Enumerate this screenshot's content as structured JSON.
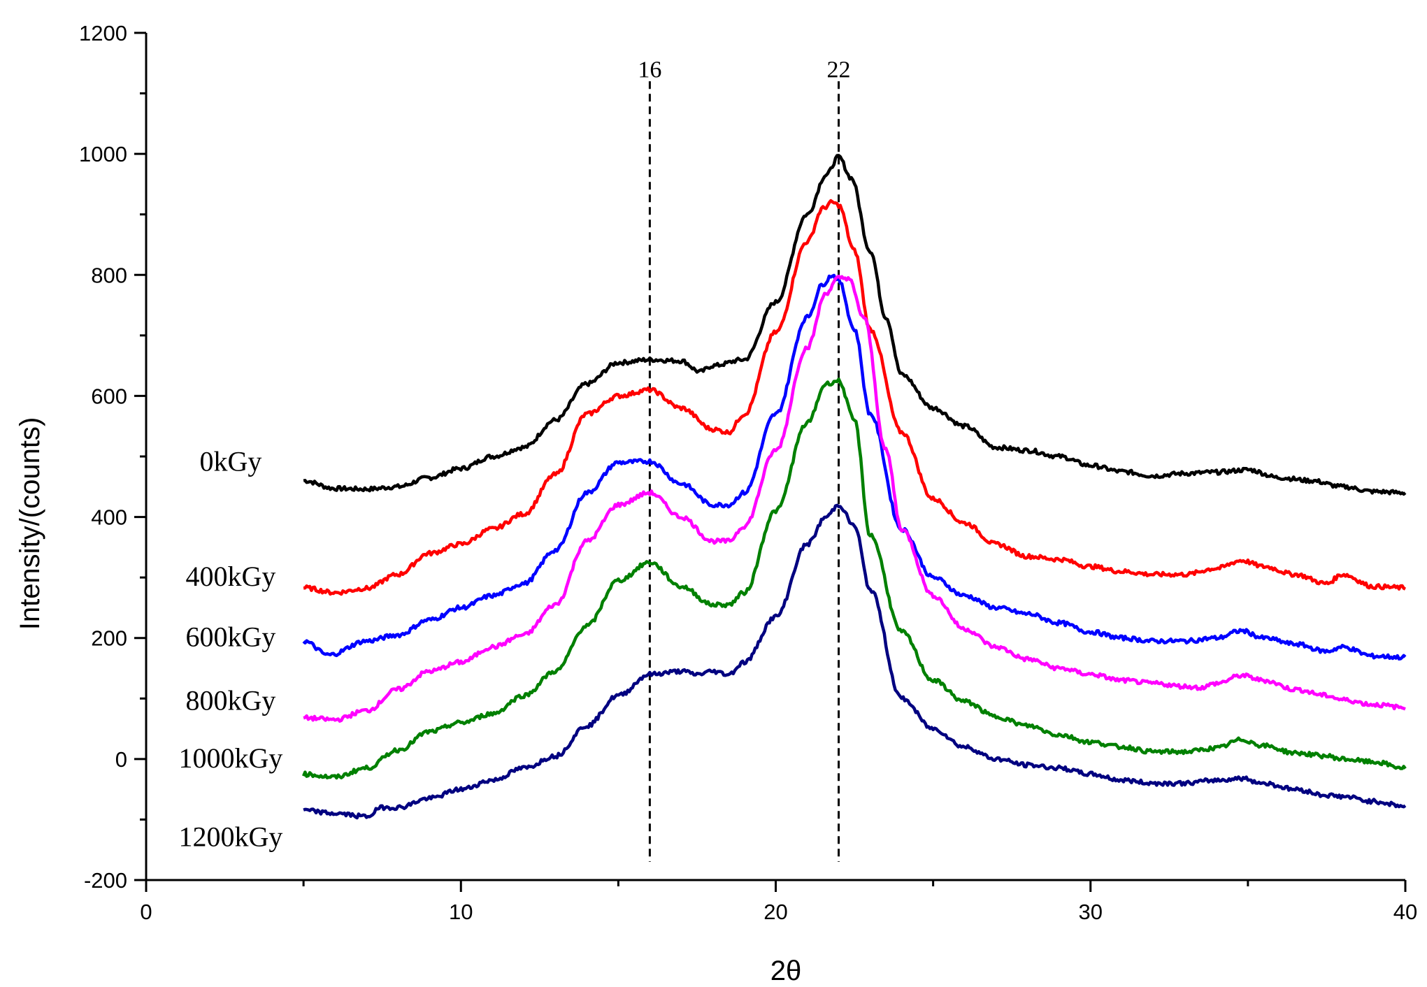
{
  "chart_data": {
    "type": "line",
    "title": "",
    "xlabel": "2θ",
    "ylabel": "Intensity/(counts)",
    "xlim": [
      0,
      40
    ],
    "ylim": [
      -200,
      1200
    ],
    "xticks": [
      0,
      10,
      20,
      30,
      40
    ],
    "xtick_labels": [
      "0",
      "10",
      "20",
      "30",
      "40"
    ],
    "yticks": [
      -200,
      0,
      200,
      400,
      600,
      800,
      1000,
      1200
    ],
    "ytick_labels": [
      "-200",
      "0",
      "200",
      "400",
      "600",
      "800",
      "1000",
      "1200"
    ],
    "grid": false,
    "reference_lines": [
      {
        "x": 16,
        "label": "16",
        "y_range": [
          -170,
          1120
        ]
      },
      {
        "x": 22,
        "label": "22",
        "y_range": [
          -170,
          1120
        ]
      }
    ],
    "series": [
      {
        "name": "0kGy",
        "color": "#000000",
        "label_y": 490,
        "x": [
          5,
          6,
          7,
          8,
          9,
          10,
          11,
          12,
          13,
          14,
          15,
          16,
          17,
          17.6,
          18,
          19,
          20,
          21,
          21.6,
          22,
          22.4,
          23,
          23.5,
          24,
          25,
          26,
          27,
          28,
          29,
          30,
          31,
          32,
          33,
          34,
          35,
          36,
          37,
          38,
          39,
          40
        ],
        "y": [
          460,
          447,
          446,
          450,
          465,
          480,
          500,
          515,
          560,
          620,
          655,
          660,
          658,
          640,
          650,
          660,
          755,
          900,
          965,
          995,
          960,
          840,
          730,
          635,
          580,
          550,
          515,
          510,
          500,
          485,
          475,
          468,
          472,
          474,
          478,
          465,
          460,
          450,
          442,
          440
        ]
      },
      {
        "name": "400kGy",
        "color": "#ff0000",
        "label_y": 300,
        "x": [
          5,
          6,
          7,
          8,
          9,
          10,
          11,
          12,
          13,
          14,
          15,
          16,
          17,
          18,
          18.5,
          19,
          20,
          21,
          21.5,
          21.8,
          22,
          22.5,
          23,
          24,
          25,
          26,
          27,
          28,
          29,
          30,
          31,
          32,
          33,
          34,
          34.8,
          35.5,
          36.5,
          37.5,
          38,
          39,
          40
        ],
        "y": [
          283,
          275,
          282,
          305,
          340,
          355,
          380,
          405,
          470,
          570,
          600,
          610,
          580,
          545,
          540,
          570,
          705,
          855,
          910,
          920,
          915,
          840,
          710,
          540,
          430,
          390,
          355,
          335,
          330,
          318,
          310,
          305,
          305,
          315,
          328,
          318,
          305,
          290,
          305,
          285,
          283
        ]
      },
      {
        "name": "600kGy",
        "color": "#0000ff",
        "label_y": 200,
        "x": [
          5,
          5.8,
          7,
          8,
          9,
          10,
          11,
          12,
          13,
          14,
          15,
          16,
          17,
          18,
          18.5,
          19,
          20,
          21,
          21.5,
          21.8,
          22,
          22.5,
          23,
          24,
          25,
          26,
          27,
          28,
          29,
          30,
          31,
          32,
          33,
          34,
          34.8,
          35.5,
          36.5,
          37.5,
          38,
          39,
          40
        ],
        "y": [
          195,
          172,
          195,
          205,
          230,
          250,
          270,
          290,
          345,
          440,
          490,
          492,
          455,
          420,
          420,
          440,
          570,
          730,
          785,
          800,
          790,
          710,
          570,
          380,
          300,
          270,
          250,
          240,
          225,
          210,
          200,
          195,
          195,
          200,
          212,
          200,
          190,
          178,
          185,
          170,
          168
        ]
      },
      {
        "name": "800kGy",
        "color": "#ff00ff",
        "label_y": 95,
        "x": [
          5,
          6,
          7,
          8,
          9,
          10,
          11,
          12,
          13,
          14,
          15,
          16,
          17,
          18,
          18.5,
          19,
          20,
          21,
          21.6,
          22,
          22.3,
          22.8,
          23.5,
          24,
          25,
          26,
          27,
          28,
          29,
          30,
          31,
          32,
          33,
          33.5,
          34,
          34.8,
          35.5,
          36.5,
          37.5,
          38,
          39,
          40
        ],
        "y": [
          68,
          65,
          80,
          115,
          145,
          160,
          185,
          205,
          255,
          360,
          420,
          440,
          400,
          360,
          360,
          385,
          510,
          680,
          770,
          795,
          795,
          730,
          510,
          380,
          270,
          215,
          185,
          165,
          150,
          140,
          130,
          125,
          120,
          118,
          125,
          138,
          130,
          115,
          105,
          98,
          90,
          85
        ]
      },
      {
        "name": "1000kGy",
        "color": "#008000",
        "label_y": 0,
        "x": [
          5,
          6,
          7,
          8,
          9,
          10,
          11,
          12,
          13,
          14,
          15,
          16,
          17,
          18,
          18.5,
          19,
          20,
          21,
          21.6,
          22,
          22.5,
          23,
          24,
          25,
          26,
          27,
          28,
          29,
          30,
          31,
          32,
          33,
          34,
          34.8,
          35.5,
          36.5,
          37.5,
          38,
          39,
          40
        ],
        "y": [
          -25,
          -30,
          -15,
          15,
          45,
          60,
          75,
          105,
          145,
          220,
          295,
          325,
          285,
          255,
          255,
          275,
          410,
          555,
          620,
          625,
          560,
          370,
          210,
          130,
          95,
          70,
          55,
          40,
          28,
          20,
          12,
          12,
          18,
          32,
          22,
          10,
          5,
          0,
          -5,
          -15
        ]
      },
      {
        "name": "1200kGy",
        "color": "#000080",
        "label_y": -130,
        "x": [
          5,
          6,
          7,
          7.5,
          8,
          9,
          10,
          11,
          12,
          13,
          14,
          15,
          16,
          17,
          17.5,
          18,
          18.5,
          19,
          20,
          21,
          21.6,
          22,
          22.5,
          23,
          24,
          25,
          26,
          27,
          28,
          29,
          30,
          31,
          32,
          33,
          34,
          34.8,
          35.5,
          36.5,
          37.5,
          38,
          39,
          40
        ],
        "y": [
          -85,
          -90,
          -95,
          -80,
          -80,
          -65,
          -50,
          -35,
          -15,
          5,
          55,
          105,
          140,
          145,
          140,
          145,
          140,
          160,
          235,
          355,
          400,
          420,
          385,
          280,
          100,
          50,
          20,
          0,
          -10,
          -15,
          -25,
          -35,
          -40,
          -40,
          -35,
          -32,
          -40,
          -50,
          -60,
          -62,
          -70,
          -78
        ]
      }
    ]
  }
}
